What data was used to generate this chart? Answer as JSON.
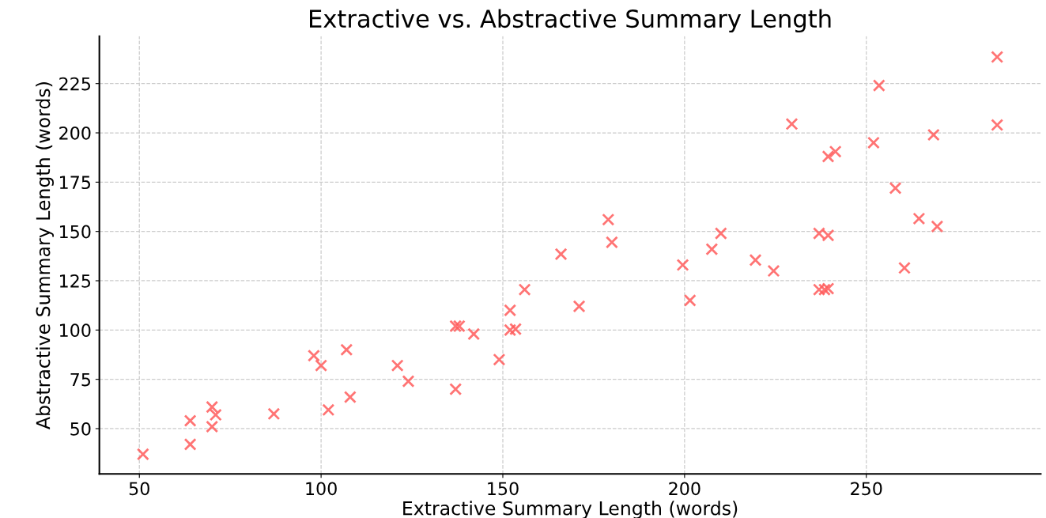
{
  "chart_data": {
    "type": "scatter",
    "title": "Extractive vs. Abstractive Summary Length",
    "xlabel": "Extractive Summary Length (words)",
    "ylabel": "Abstractive Summary Length (words)",
    "x": [
      51,
      64,
      64,
      70,
      70,
      71,
      87,
      98,
      100,
      102,
      107,
      108,
      121,
      124,
      137,
      138,
      137,
      142,
      149,
      152,
      152,
      153.5,
      156,
      166,
      171,
      179,
      180,
      199.5,
      201.5,
      207.5,
      210,
      219.5,
      224.5,
      229.5,
      237,
      237,
      238.5,
      239.5,
      239.5,
      239.5,
      241.5,
      252,
      253.5,
      258,
      260.5,
      264.5,
      268.5,
      269.5,
      286,
      286
    ],
    "series": [
      {
        "color": "#ff5c5c",
        "values": [
          37,
          54,
          42,
          61,
          51,
          57,
          57.5,
          87,
          82,
          59.5,
          90,
          66,
          82,
          74,
          102,
          102,
          70,
          98,
          85,
          110,
          100,
          100.5,
          120.5,
          138.5,
          112,
          156,
          144.5,
          133,
          115,
          141,
          149,
          135.5,
          130,
          204.5,
          149,
          120.5,
          120.5,
          148,
          188,
          121,
          190.5,
          195,
          224,
          172,
          131.5,
          156.5,
          199,
          152.5,
          238.5,
          204
        ]
      }
    ],
    "marker": "cross",
    "xlim": [
      39,
      298
    ],
    "ylim": [
      27,
      249
    ],
    "xticks": [
      50,
      100,
      150,
      200,
      250
    ],
    "yticks": [
      50,
      75,
      100,
      125,
      150,
      175,
      200,
      225
    ],
    "grid": true,
    "legend": false
  }
}
